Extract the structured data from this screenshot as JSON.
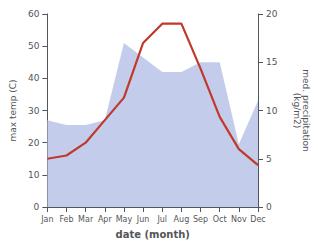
{
  "chart_data": {
    "type": "line",
    "xlabel": "date (month)",
    "ylabel": "max temp (C)",
    "y2label": "med. precipitation\n(kg/m2)",
    "categories": [
      "Jan",
      "Feb",
      "Mar",
      "Apr",
      "May",
      "Jun",
      "Jul",
      "Aug",
      "Sep",
      "Oct",
      "Nov",
      "Dec"
    ],
    "series": [
      {
        "type": "area",
        "axis": "y2",
        "color": "#b8c4e8",
        "values": [
          9,
          8.5,
          8.5,
          9,
          17,
          15.5,
          14,
          14,
          15,
          15,
          6.5,
          11
        ]
      },
      {
        "type": "line",
        "color": "#c0392b",
        "values": [
          15,
          16,
          20,
          27,
          34,
          51,
          57,
          57,
          43,
          28,
          18,
          13
        ]
      }
    ],
    "ylim": [
      0,
      60
    ],
    "yticks": [
      0,
      10,
      20,
      30,
      40,
      50,
      60
    ],
    "y2lim": [
      0,
      20
    ],
    "y2ticks": [
      0,
      5,
      10,
      15,
      20
    ],
    "grid": false
  }
}
